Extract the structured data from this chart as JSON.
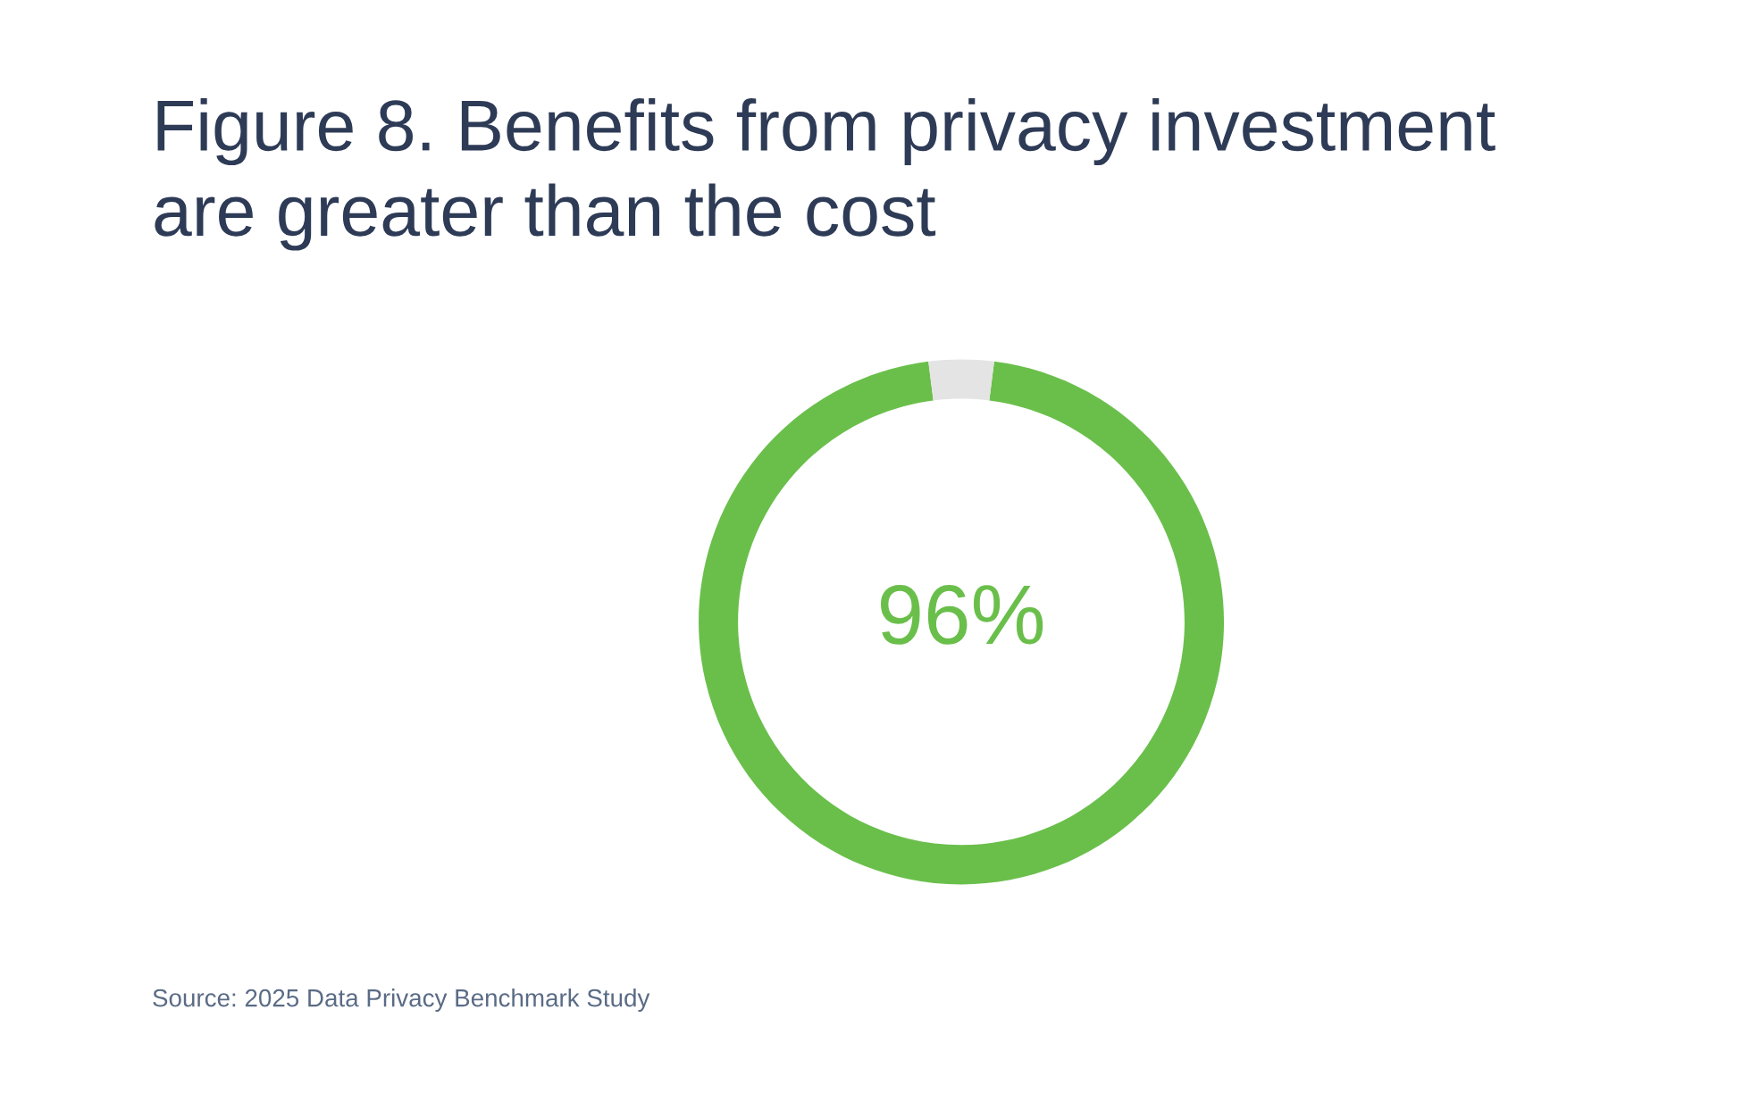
{
  "chart_data": {
    "type": "donut",
    "title": "Figure 8. Benefits from privacy investment\nare greater than the cost",
    "categories": [
      null,
      null
    ],
    "values": [
      96,
      4
    ],
    "colors": [
      "#6abf4b",
      "#e4e4e4"
    ],
    "value_labels": [
      "96%",
      null
    ],
    "legend": false,
    "annotations": [
      "Source: 2025 Data Privacy Benchmark Study"
    ]
  }
}
